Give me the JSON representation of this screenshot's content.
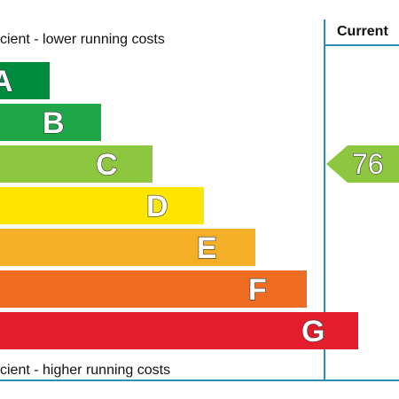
{
  "top_caption": "cient - lower running costs",
  "bottom_caption": "cient - higher running costs",
  "column_header": "Current",
  "colors": {
    "border": "#2a8fb0",
    "A": "#008a3e",
    "B": "#1fa648",
    "C": "#8dc63f",
    "D": "#ffe600",
    "E": "#f5ae27",
    "F": "#ee6d23",
    "G": "#e31d2b",
    "pointer": "#8dc63f"
  },
  "chart_data": {
    "type": "bar",
    "categories": [
      "A",
      "B",
      "C",
      "D",
      "E",
      "F",
      "G"
    ],
    "series": [
      {
        "values": [
          1,
          2,
          3,
          4,
          5,
          6,
          7
        ]
      }
    ],
    "current_rating": 76,
    "current_band": "C"
  }
}
